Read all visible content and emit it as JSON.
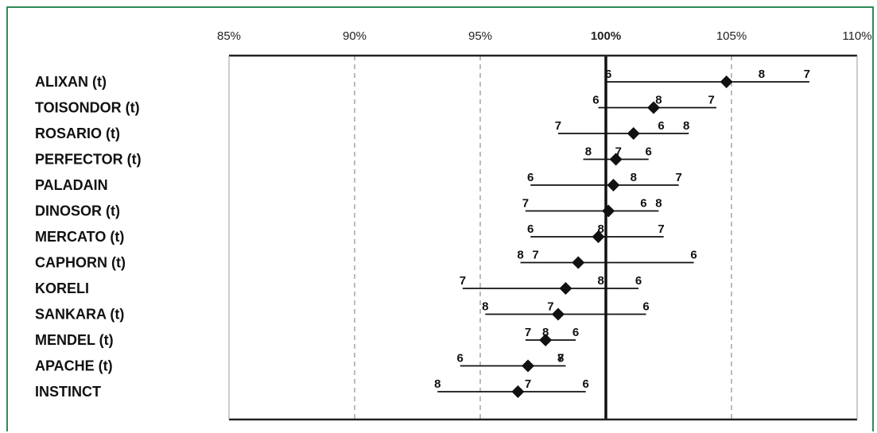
{
  "chart_data": {
    "type": "scatter",
    "subtype": "dot-with-range",
    "x_ticks": [
      {
        "value": 85,
        "label": "85%",
        "bold": false
      },
      {
        "value": 90,
        "label": "90%",
        "bold": false
      },
      {
        "value": 95,
        "label": "95%",
        "bold": false
      },
      {
        "value": 100,
        "label": "100%",
        "bold": true
      },
      {
        "value": 105,
        "label": "105%",
        "bold": false
      },
      {
        "value": 110,
        "label": "110%",
        "bold": false
      }
    ],
    "xlim": [
      85,
      110
    ],
    "reference_line": 100,
    "grid": "vertical dashed",
    "categories": [
      {
        "label": "ALIXAN (t)",
        "value": 104.8,
        "min": 100.0,
        "max": 108.1,
        "markers": [
          {
            "label": "6",
            "x": 100.1
          },
          {
            "label": "8",
            "x": 106.2
          },
          {
            "label": "7",
            "x": 108.0
          }
        ]
      },
      {
        "label": "TOISONDOR (t)",
        "value": 101.9,
        "min": 99.7,
        "max": 104.4,
        "markers": [
          {
            "label": "6",
            "x": 99.6
          },
          {
            "label": "8",
            "x": 102.1
          },
          {
            "label": "7",
            "x": 104.2
          }
        ]
      },
      {
        "label": "ROSARIO (t)",
        "value": 101.1,
        "min": 98.1,
        "max": 103.3,
        "markers": [
          {
            "label": "7",
            "x": 98.1
          },
          {
            "label": "6",
            "x": 102.2
          },
          {
            "label": "8",
            "x": 103.2
          }
        ]
      },
      {
        "label": "PERFECTOR (t)",
        "value": 100.4,
        "min": 99.1,
        "max": 101.7,
        "markers": [
          {
            "label": "8",
            "x": 99.3
          },
          {
            "label": "7",
            "x": 100.5
          },
          {
            "label": "6",
            "x": 101.7
          }
        ]
      },
      {
        "label": "PALADAIN",
        "value": 100.3,
        "min": 97.0,
        "max": 102.9,
        "markers": [
          {
            "label": "6",
            "x": 97.0
          },
          {
            "label": "8",
            "x": 101.1
          },
          {
            "label": "7",
            "x": 102.9
          }
        ]
      },
      {
        "label": "DINOSOR (t)",
        "value": 100.1,
        "min": 96.8,
        "max": 102.1,
        "markers": [
          {
            "label": "7",
            "x": 96.8
          },
          {
            "label": "6",
            "x": 101.5
          },
          {
            "label": "8",
            "x": 102.1
          }
        ]
      },
      {
        "label": "MERCATO (t)",
        "value": 99.7,
        "min": 97.0,
        "max": 102.3,
        "markers": [
          {
            "label": "6",
            "x": 97.0
          },
          {
            "label": "8",
            "x": 99.8
          },
          {
            "label": "7",
            "x": 102.2
          }
        ]
      },
      {
        "label": "CAPHORN (t)",
        "value": 98.9,
        "min": 96.6,
        "max": 103.5,
        "markers": [
          {
            "label": "8",
            "x": 96.6
          },
          {
            "label": "7",
            "x": 97.2
          },
          {
            "label": "6",
            "x": 103.5
          }
        ]
      },
      {
        "label": "KORELI",
        "value": 98.4,
        "min": 94.3,
        "max": 101.3,
        "markers": [
          {
            "label": "7",
            "x": 94.3
          },
          {
            "label": "8",
            "x": 99.8
          },
          {
            "label": "6",
            "x": 101.3
          }
        ]
      },
      {
        "label": "SANKARA (t)",
        "value": 98.1,
        "min": 95.2,
        "max": 101.6,
        "markers": [
          {
            "label": "8",
            "x": 95.2
          },
          {
            "label": "7",
            "x": 97.8
          },
          {
            "label": "6",
            "x": 101.6
          }
        ]
      },
      {
        "label": "MENDEL (t)",
        "value": 97.6,
        "min": 96.8,
        "max": 98.8,
        "markers": [
          {
            "label": "7",
            "x": 96.9
          },
          {
            "label": "8",
            "x": 97.6
          },
          {
            "label": "6",
            "x": 98.8
          }
        ]
      },
      {
        "label": "APACHE (t)",
        "value": 96.9,
        "min": 94.2,
        "max": 98.4,
        "markers": [
          {
            "label": "6",
            "x": 94.2
          },
          {
            "label": "8",
            "x": 98.2
          },
          {
            "label": "7",
            "x": 98.2
          }
        ]
      },
      {
        "label": "INSTINCT",
        "value": 96.5,
        "min": 93.3,
        "max": 99.2,
        "markers": [
          {
            "label": "8",
            "x": 93.3
          },
          {
            "label": "7",
            "x": 96.9
          },
          {
            "label": "6",
            "x": 99.2
          }
        ]
      }
    ]
  }
}
